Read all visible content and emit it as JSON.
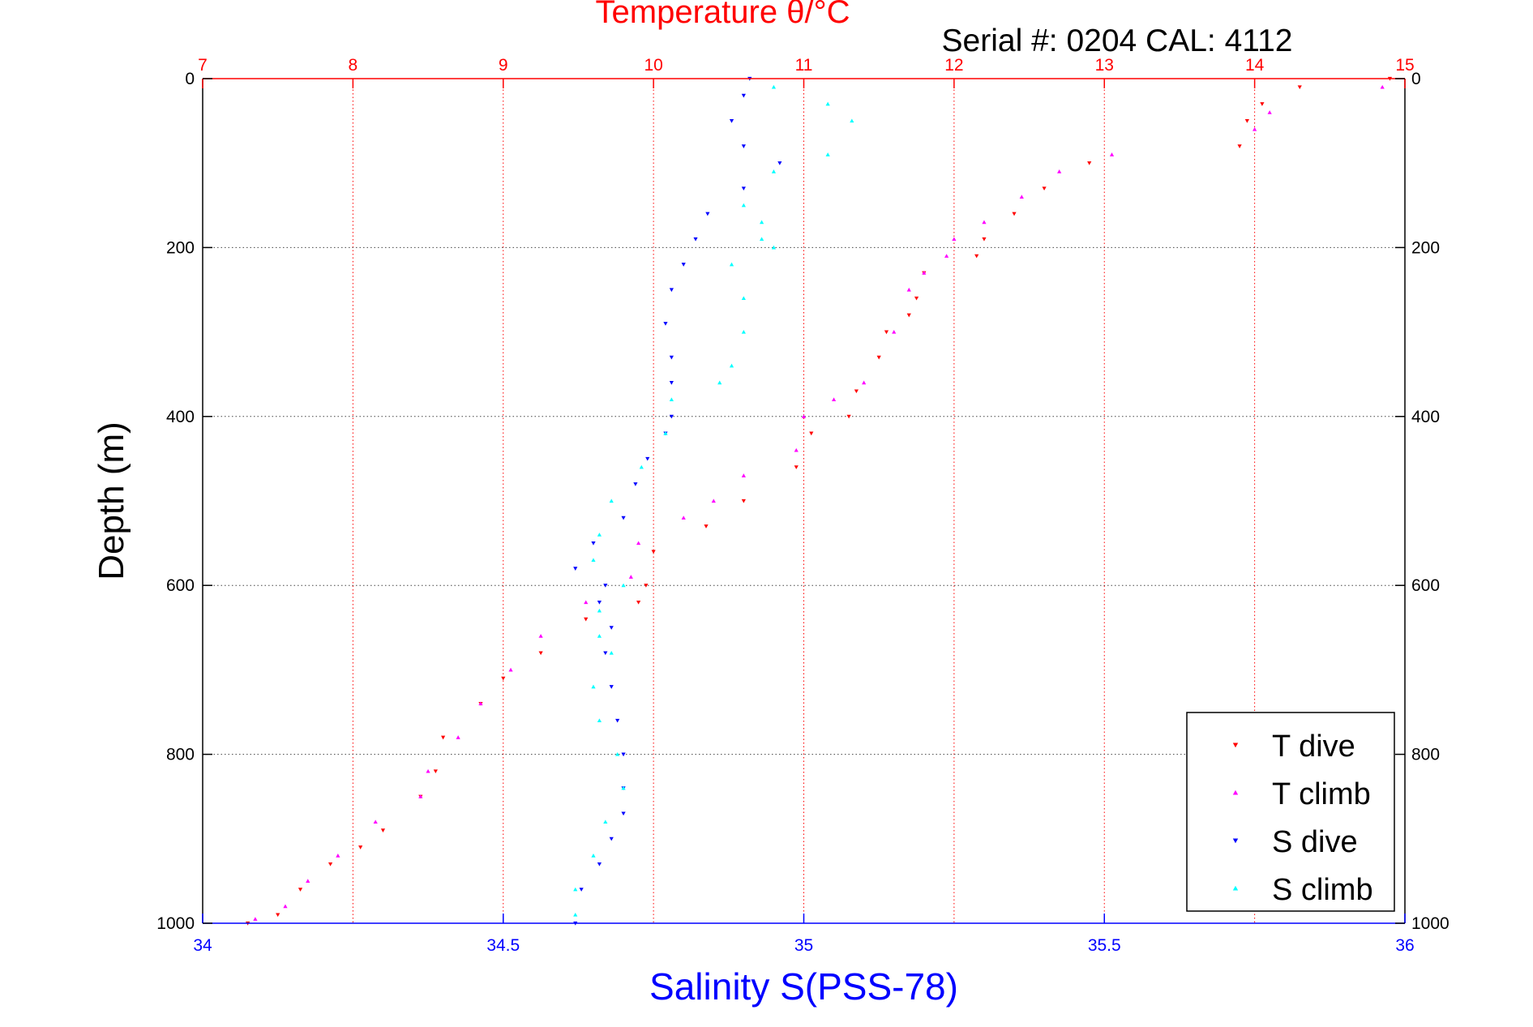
{
  "colors": {
    "temperature_axis": "#ff0000",
    "salinity_axis": "#0000ff",
    "t_dive": "#ff0000",
    "t_climb": "#ff00ff",
    "s_dive": "#0000ff",
    "s_climb": "#00ffff",
    "grid": "#444444",
    "axes": "#000000"
  },
  "header": {
    "title": "Temperature θ/°C",
    "serial": "Serial #: 0204  CAL: 4112"
  },
  "chart_data": {
    "type": "scatter",
    "title": "Temperature θ/°C",
    "xlabel": "Salinity S(PSS-78)",
    "ylabel": "Depth (m)",
    "x_top": {
      "label": "Temperature θ/°C",
      "lim": [
        7,
        15
      ],
      "ticks": [
        "7",
        "8",
        "9",
        "10",
        "11",
        "12",
        "13",
        "14",
        "15"
      ]
    },
    "x_bottom": {
      "label": "Salinity S(PSS-78)",
      "lim": [
        34,
        36
      ],
      "ticks": [
        "34",
        "34.5",
        "35",
        "35.5",
        "36"
      ]
    },
    "y": {
      "label": "Depth (m)",
      "lim": [
        0,
        1000
      ],
      "reversed": true,
      "ticks_left": [
        "0",
        "200",
        "400",
        "600",
        "800",
        "1000"
      ],
      "ticks_right": [
        "0",
        "200",
        "400",
        "600",
        "800",
        "1000"
      ]
    },
    "grid": true,
    "legend_position": "bottom-right",
    "series": [
      {
        "name": "T dive",
        "axis": "temperature",
        "marker": "triangle-down",
        "points": [
          [
            14.9,
            0
          ],
          [
            14.3,
            10
          ],
          [
            14.05,
            30
          ],
          [
            13.95,
            50
          ],
          [
            13.9,
            80
          ],
          [
            12.9,
            100
          ],
          [
            12.6,
            130
          ],
          [
            12.4,
            160
          ],
          [
            12.2,
            190
          ],
          [
            12.15,
            210
          ],
          [
            11.8,
            230
          ],
          [
            11.75,
            260
          ],
          [
            11.7,
            280
          ],
          [
            11.55,
            300
          ],
          [
            11.5,
            330
          ],
          [
            11.35,
            370
          ],
          [
            11.3,
            400
          ],
          [
            11.05,
            420
          ],
          [
            10.95,
            460
          ],
          [
            10.6,
            500
          ],
          [
            10.35,
            530
          ],
          [
            10.0,
            560
          ],
          [
            9.95,
            600
          ],
          [
            9.9,
            620
          ],
          [
            9.55,
            640
          ],
          [
            9.25,
            680
          ],
          [
            9.0,
            710
          ],
          [
            8.85,
            740
          ],
          [
            8.6,
            780
          ],
          [
            8.55,
            820
          ],
          [
            8.45,
            850
          ],
          [
            8.2,
            890
          ],
          [
            8.05,
            910
          ],
          [
            7.85,
            930
          ],
          [
            7.65,
            960
          ],
          [
            7.5,
            990
          ],
          [
            7.3,
            1000
          ]
        ]
      },
      {
        "name": "T climb",
        "axis": "temperature",
        "marker": "triangle-up",
        "points": [
          [
            14.85,
            10
          ],
          [
            14.1,
            40
          ],
          [
            14.0,
            60
          ],
          [
            13.05,
            90
          ],
          [
            12.7,
            110
          ],
          [
            12.45,
            140
          ],
          [
            12.2,
            170
          ],
          [
            12.0,
            190
          ],
          [
            11.95,
            210
          ],
          [
            11.8,
            230
          ],
          [
            11.7,
            250
          ],
          [
            11.6,
            300
          ],
          [
            11.4,
            360
          ],
          [
            11.2,
            380
          ],
          [
            11.0,
            400
          ],
          [
            10.95,
            440
          ],
          [
            10.6,
            470
          ],
          [
            10.4,
            500
          ],
          [
            10.2,
            520
          ],
          [
            9.9,
            550
          ],
          [
            9.85,
            590
          ],
          [
            9.55,
            620
          ],
          [
            9.25,
            660
          ],
          [
            9.05,
            700
          ],
          [
            8.85,
            740
          ],
          [
            8.7,
            780
          ],
          [
            8.5,
            820
          ],
          [
            8.45,
            850
          ],
          [
            8.15,
            880
          ],
          [
            7.9,
            920
          ],
          [
            7.7,
            950
          ],
          [
            7.55,
            980
          ],
          [
            7.35,
            995
          ]
        ]
      },
      {
        "name": "S dive",
        "axis": "salinity",
        "marker": "triangle-down",
        "points": [
          [
            34.91,
            0
          ],
          [
            34.9,
            20
          ],
          [
            34.88,
            50
          ],
          [
            34.9,
            80
          ],
          [
            34.96,
            100
          ],
          [
            34.9,
            130
          ],
          [
            34.84,
            160
          ],
          [
            34.82,
            190
          ],
          [
            34.8,
            220
          ],
          [
            34.78,
            250
          ],
          [
            34.77,
            290
          ],
          [
            34.78,
            330
          ],
          [
            34.78,
            360
          ],
          [
            34.78,
            400
          ],
          [
            34.77,
            420
          ],
          [
            34.74,
            450
          ],
          [
            34.72,
            480
          ],
          [
            34.7,
            520
          ],
          [
            34.65,
            550
          ],
          [
            34.62,
            580
          ],
          [
            34.67,
            600
          ],
          [
            34.66,
            620
          ],
          [
            34.68,
            650
          ],
          [
            34.67,
            680
          ],
          [
            34.68,
            720
          ],
          [
            34.69,
            760
          ],
          [
            34.7,
            800
          ],
          [
            34.7,
            840
          ],
          [
            34.7,
            870
          ],
          [
            34.68,
            900
          ],
          [
            34.66,
            930
          ],
          [
            34.63,
            960
          ],
          [
            34.62,
            1000
          ]
        ]
      },
      {
        "name": "S climb",
        "axis": "salinity",
        "marker": "triangle-up",
        "points": [
          [
            34.95,
            10
          ],
          [
            35.04,
            30
          ],
          [
            35.08,
            50
          ],
          [
            35.04,
            90
          ],
          [
            34.95,
            110
          ],
          [
            34.9,
            150
          ],
          [
            34.93,
            170
          ],
          [
            34.93,
            190
          ],
          [
            34.95,
            200
          ],
          [
            34.88,
            220
          ],
          [
            34.9,
            260
          ],
          [
            34.9,
            300
          ],
          [
            34.88,
            340
          ],
          [
            34.86,
            360
          ],
          [
            34.78,
            380
          ],
          [
            34.77,
            420
          ],
          [
            34.73,
            460
          ],
          [
            34.68,
            500
          ],
          [
            34.66,
            540
          ],
          [
            34.65,
            570
          ],
          [
            34.7,
            600
          ],
          [
            34.66,
            630
          ],
          [
            34.66,
            660
          ],
          [
            34.68,
            680
          ],
          [
            34.65,
            720
          ],
          [
            34.66,
            760
          ],
          [
            34.69,
            800
          ],
          [
            34.7,
            840
          ],
          [
            34.67,
            880
          ],
          [
            34.65,
            920
          ],
          [
            34.62,
            960
          ],
          [
            34.62,
            990
          ]
        ]
      }
    ]
  },
  "legend": {
    "items": [
      {
        "label": "T dive",
        "marker": "triangle-down",
        "color": "#ff0000"
      },
      {
        "label": "T climb",
        "marker": "triangle-up",
        "color": "#ff00ff"
      },
      {
        "label": "S dive",
        "marker": "triangle-down",
        "color": "#0000ff"
      },
      {
        "label": "S climb",
        "marker": "triangle-up",
        "color": "#00ffff"
      }
    ]
  }
}
